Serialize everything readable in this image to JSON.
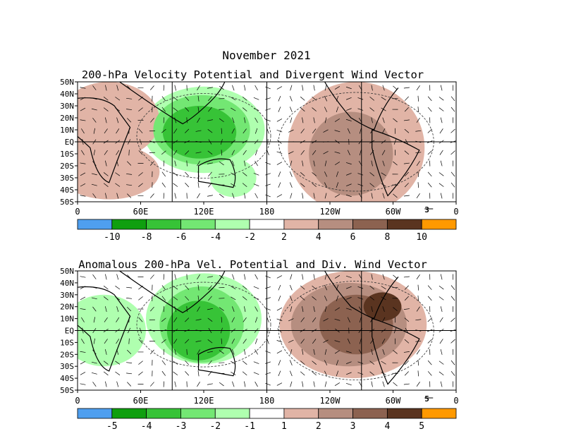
{
  "figure": {
    "title": "November 2021"
  },
  "chart_data": [
    {
      "type": "heatmap",
      "title": "200-hPa Velocity Potential and Divergent Wind Vector",
      "y_ticks": [
        "50N",
        "40N",
        "30N",
        "20N",
        "10N",
        "EQ",
        "10S",
        "20S",
        "30S",
        "40S",
        "50S"
      ],
      "y_range": [
        50,
        -50
      ],
      "x_ticks": [
        "0",
        "60E",
        "120E",
        "180",
        "120W",
        "60W",
        "0"
      ],
      "x_tick_longitudes": [
        0,
        60,
        120,
        180,
        240,
        300,
        360
      ],
      "vector_reference": "3",
      "colorbar": {
        "colors": [
          "#4f9fef",
          "#0f9f0f",
          "#37c337",
          "#73e773",
          "#afffaf",
          "#ffffff",
          "#e1b4a6",
          "#b68e80",
          "#8c6250",
          "#5a3420",
          "#ff9900"
        ],
        "labels": [
          "-10",
          "-8",
          "-6",
          "-4",
          "-2",
          "2",
          "4",
          "6",
          "8",
          "10"
        ]
      },
      "blobs": [
        {
          "lon": 120,
          "lat": 10,
          "rx": 58,
          "ry": 36,
          "level": 1
        },
        {
          "lon": 118,
          "lat": 10,
          "rx": 46,
          "ry": 29,
          "level": 2
        },
        {
          "lon": 116,
          "lat": 8,
          "rx": 35,
          "ry": 22,
          "level": 3
        },
        {
          "lon": 148,
          "lat": -30,
          "rx": 22,
          "ry": 16,
          "level": 1
        },
        {
          "lon": 30,
          "lat": 18,
          "rx": 48,
          "ry": 32,
          "level": -1
        },
        {
          "lon": 30,
          "lat": -25,
          "rx": 48,
          "ry": 23,
          "level": -1
        },
        {
          "lon": 265,
          "lat": -5,
          "rx": 65,
          "ry": 55,
          "level": -1
        },
        {
          "lon": 260,
          "lat": -10,
          "rx": 40,
          "ry": 35,
          "level": -2
        },
        {
          "lon": 255,
          "lat": 25,
          "rx": 30,
          "ry": 20,
          "level": -1
        },
        {
          "lon": 315,
          "lat": -5,
          "rx": 25,
          "ry": 15,
          "level": 0
        }
      ]
    },
    {
      "type": "heatmap",
      "title": "Anomalous 200-hPa Vel. Potential and Div. Wind Vector",
      "y_ticks": [
        "50N",
        "40N",
        "30N",
        "20N",
        "10N",
        "EQ",
        "10S",
        "20S",
        "30S",
        "40S",
        "50S"
      ],
      "y_range": [
        50,
        -50
      ],
      "x_ticks": [
        "0",
        "60E",
        "120E",
        "180",
        "120W",
        "60W",
        "0"
      ],
      "x_tick_longitudes": [
        0,
        60,
        120,
        180,
        240,
        300,
        360
      ],
      "vector_reference": "5",
      "colorbar": {
        "colors": [
          "#4f9fef",
          "#0f9f0f",
          "#37c337",
          "#73e773",
          "#afffaf",
          "#ffffff",
          "#e1b4a6",
          "#b68e80",
          "#8c6250",
          "#5a3420",
          "#ff9900"
        ],
        "labels": [
          "-5",
          "-4",
          "-3",
          "-2",
          "-1",
          "1",
          "2",
          "3",
          "4",
          "5"
        ]
      },
      "blobs": [
        {
          "lon": 120,
          "lat": 10,
          "rx": 55,
          "ry": 38,
          "level": 1
        },
        {
          "lon": 118,
          "lat": 5,
          "rx": 40,
          "ry": 32,
          "level": 2
        },
        {
          "lon": 115,
          "lat": 0,
          "rx": 30,
          "ry": 25,
          "level": 3
        },
        {
          "lon": 25,
          "lat": 0,
          "rx": 40,
          "ry": 30,
          "level": 1
        },
        {
          "lon": 262,
          "lat": 5,
          "rx": 70,
          "ry": 45,
          "level": -1
        },
        {
          "lon": 258,
          "lat": 5,
          "rx": 55,
          "ry": 35,
          "level": -2
        },
        {
          "lon": 265,
          "lat": 5,
          "rx": 35,
          "ry": 25,
          "level": -3
        },
        {
          "lon": 290,
          "lat": 20,
          "rx": 18,
          "ry": 12,
          "level": -4
        }
      ]
    }
  ]
}
